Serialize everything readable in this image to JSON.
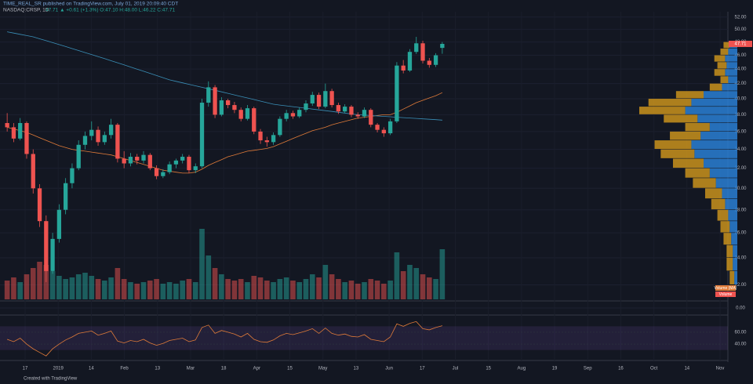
{
  "header": {
    "publisher": "TIME_REAL_SR published on TradingView.com, July 01, 2019 20:09:40 CDT",
    "symbol": "NASDAQ:CRSP, 1D",
    "quote": "47.71 ▲ +0.61 (+1.3%) O:47.10 H:48.00 L:46.22 C:47.71"
  },
  "footer": "Created with TradingView",
  "chart_data": {
    "type": "candlestick",
    "log_scale": true,
    "ylim": [
      21,
      52.5
    ],
    "yticks": [
      {
        "value": 22,
        "label": "22.00"
      },
      {
        "value": 24,
        "label": "24.00"
      },
      {
        "value": 26,
        "label": "26.00"
      },
      {
        "value": 28,
        "label": "28.00"
      },
      {
        "value": 30,
        "label": "30.00"
      },
      {
        "value": 32,
        "label": "32.00"
      },
      {
        "value": 34,
        "label": "34.00"
      },
      {
        "value": 36,
        "label": "36.00"
      },
      {
        "value": 38,
        "label": "38.00"
      },
      {
        "value": 40,
        "label": "40.00"
      },
      {
        "value": 42,
        "label": "42.00"
      },
      {
        "value": 44,
        "label": "44.00"
      },
      {
        "value": 46,
        "label": "46.00"
      },
      {
        "value": 48,
        "label": "48.00"
      },
      {
        "value": 50,
        "label": "50.00"
      },
      {
        "value": 52,
        "label": "52.00"
      }
    ],
    "xtick_labels": [
      "17",
      "2019",
      "14",
      "Feb",
      "13",
      "Mar",
      "18",
      "Apr",
      "15",
      "May",
      "13",
      "Jun",
      "17",
      "Jul",
      "15",
      "Aug",
      "19",
      "Sep",
      "16",
      "Oct",
      "14",
      "Nov"
    ],
    "up_color": "#26a69a",
    "down_color": "#ef5350",
    "last_price": 47.71,
    "ohlc": [
      [
        37.0,
        38.2,
        36.0,
        36.5
      ],
      [
        36.5,
        37.0,
        34.8,
        35.2
      ],
      [
        35.2,
        37.6,
        35.0,
        37.0
      ],
      [
        37.0,
        37.2,
        33.0,
        33.5
      ],
      [
        33.5,
        34.0,
        29.5,
        30.0
      ],
      [
        30.0,
        30.4,
        26.5,
        27.0
      ],
      [
        27.0,
        27.5,
        22.2,
        23.0
      ],
      [
        23.0,
        26.0,
        22.8,
        25.5
      ],
      [
        25.5,
        28.5,
        25.2,
        28.0
      ],
      [
        28.0,
        31.0,
        27.6,
        30.5
      ],
      [
        30.5,
        32.5,
        30.0,
        32.0
      ],
      [
        32.0,
        35.0,
        31.8,
        34.5
      ],
      [
        34.5,
        36.0,
        34.0,
        35.5
      ],
      [
        35.5,
        37.2,
        35.0,
        36.2
      ],
      [
        36.2,
        36.6,
        34.4,
        34.8
      ],
      [
        34.8,
        36.0,
        34.5,
        35.6
      ],
      [
        35.6,
        37.5,
        35.2,
        36.8
      ],
      [
        36.8,
        37.0,
        32.6,
        33.0
      ],
      [
        33.0,
        33.8,
        32.0,
        32.5
      ],
      [
        32.5,
        33.6,
        32.2,
        33.2
      ],
      [
        33.2,
        33.5,
        32.4,
        32.8
      ],
      [
        32.8,
        33.8,
        32.5,
        33.4
      ],
      [
        33.4,
        33.6,
        31.8,
        32.0
      ],
      [
        32.0,
        32.3,
        30.9,
        31.2
      ],
      [
        31.2,
        31.9,
        31.0,
        31.6
      ],
      [
        31.6,
        32.7,
        31.4,
        32.4
      ],
      [
        32.4,
        33.0,
        32.0,
        32.8
      ],
      [
        32.8,
        33.5,
        32.5,
        33.2
      ],
      [
        33.2,
        33.4,
        31.5,
        31.8
      ],
      [
        31.8,
        32.5,
        31.5,
        32.2
      ],
      [
        32.2,
        40.0,
        32.0,
        39.5
      ],
      [
        39.5,
        42.3,
        39.0,
        41.5
      ],
      [
        41.5,
        41.8,
        37.6,
        38.0
      ],
      [
        38.0,
        40.2,
        37.8,
        39.8
      ],
      [
        39.8,
        40.0,
        38.8,
        39.2
      ],
      [
        39.2,
        39.6,
        38.2,
        38.6
      ],
      [
        38.6,
        38.9,
        37.2,
        37.5
      ],
      [
        37.5,
        39.2,
        37.3,
        38.8
      ],
      [
        38.8,
        39.0,
        35.7,
        36.0
      ],
      [
        36.0,
        36.3,
        34.6,
        35.0
      ],
      [
        35.0,
        35.4,
        34.3,
        34.8
      ],
      [
        34.8,
        35.9,
        34.5,
        35.6
      ],
      [
        35.6,
        37.8,
        35.4,
        37.5
      ],
      [
        37.5,
        38.6,
        37.2,
        38.2
      ],
      [
        38.2,
        38.5,
        37.5,
        37.8
      ],
      [
        37.8,
        38.9,
        37.6,
        38.6
      ],
      [
        38.6,
        39.8,
        38.3,
        39.4
      ],
      [
        39.4,
        40.9,
        39.1,
        40.5
      ],
      [
        40.5,
        40.8,
        38.7,
        39.0
      ],
      [
        39.0,
        42.0,
        38.8,
        41.0
      ],
      [
        41.0,
        41.3,
        38.9,
        39.2
      ],
      [
        39.2,
        39.5,
        38.1,
        38.4
      ],
      [
        38.4,
        39.3,
        38.2,
        39.0
      ],
      [
        39.0,
        39.2,
        37.7,
        38.0
      ],
      [
        38.0,
        38.3,
        37.5,
        37.8
      ],
      [
        37.8,
        38.9,
        37.6,
        38.6
      ],
      [
        38.6,
        38.8,
        36.5,
        36.8
      ],
      [
        36.8,
        37.0,
        35.9,
        36.2
      ],
      [
        36.2,
        36.5,
        35.4,
        35.8
      ],
      [
        35.8,
        37.5,
        35.6,
        37.2
      ],
      [
        37.2,
        45.0,
        37.0,
        44.5
      ],
      [
        44.5,
        45.3,
        43.4,
        43.8
      ],
      [
        43.8,
        46.9,
        43.6,
        46.5
      ],
      [
        46.5,
        48.8,
        46.2,
        47.8
      ],
      [
        47.8,
        48.2,
        44.8,
        45.2
      ],
      [
        45.2,
        45.6,
        44.2,
        44.6
      ],
      [
        44.6,
        46.3,
        44.3,
        46.0
      ],
      [
        47.1,
        48.0,
        46.22,
        47.71
      ]
    ],
    "moving_averages": [
      {
        "color": "#e07b39",
        "values": [
          36.5,
          36.3,
          36.1,
          35.9,
          35.6,
          35.3,
          35.0,
          34.7,
          34.4,
          34.2,
          34.0,
          33.9,
          33.8,
          33.7,
          33.6,
          33.5,
          33.4,
          33.2,
          33.0,
          32.8,
          32.6,
          32.4,
          32.2,
          32.0,
          31.8,
          31.7,
          31.6,
          31.5,
          31.5,
          31.6,
          31.9,
          32.3,
          32.6,
          32.9,
          33.2,
          33.4,
          33.6,
          33.8,
          33.9,
          34.0,
          34.1,
          34.3,
          34.6,
          34.9,
          35.2,
          35.5,
          35.8,
          36.1,
          36.3,
          36.5,
          36.8,
          37.0,
          37.2,
          37.4,
          37.6,
          37.7,
          37.8,
          37.9,
          38.0,
          38.0,
          38.3,
          38.7,
          39.1,
          39.5,
          39.8,
          40.1,
          40.4,
          40.8
        ]
      },
      {
        "color": "#3a8fb7",
        "values": [
          49.6,
          49.4,
          49.2,
          49.0,
          48.8,
          48.5,
          48.2,
          47.9,
          47.6,
          47.3,
          47.0,
          46.7,
          46.4,
          46.1,
          45.8,
          45.5,
          45.2,
          44.9,
          44.6,
          44.3,
          44.0,
          43.7,
          43.4,
          43.1,
          42.8,
          42.5,
          42.3,
          42.1,
          41.9,
          41.7,
          41.5,
          41.3,
          41.1,
          40.9,
          40.7,
          40.5,
          40.3,
          40.1,
          39.9,
          39.7,
          39.5,
          39.3,
          39.2,
          39.1,
          39.0,
          38.9,
          38.8,
          38.7,
          38.6,
          38.5,
          38.4,
          38.3,
          38.2,
          38.1,
          38.0,
          37.95,
          37.9,
          37.85,
          37.8,
          37.75,
          37.7,
          37.65,
          37.6,
          37.55,
          37.5,
          37.45,
          37.4,
          37.35
        ]
      }
    ],
    "volume": {
      "labels": [
        "Volume (MA)",
        "Volume"
      ],
      "values": [
        1.2,
        1.4,
        1.1,
        1.6,
        2.0,
        2.4,
        2.2,
        1.8,
        1.5,
        1.3,
        1.4,
        1.6,
        1.7,
        1.5,
        1.3,
        1.2,
        1.4,
        2.0,
        1.3,
        1.1,
        1.0,
        1.1,
        1.2,
        1.3,
        1.0,
        1.1,
        1.0,
        1.2,
        1.3,
        1.1,
        4.5,
        2.8,
        2.0,
        1.6,
        1.3,
        1.2,
        1.3,
        1.1,
        1.5,
        1.4,
        1.2,
        1.1,
        1.3,
        1.4,
        1.2,
        1.1,
        1.3,
        1.6,
        1.4,
        2.2,
        1.6,
        1.3,
        1.1,
        1.2,
        1.0,
        1.1,
        1.3,
        1.2,
        1.0,
        1.2,
        3.0,
        1.8,
        2.2,
        2.0,
        1.6,
        1.4,
        1.3,
        3.2
      ]
    },
    "volume_profile": {
      "up_color": "#2a7fd4",
      "down_color": "#c9921c",
      "bins": [
        22,
        23,
        24,
        25,
        26,
        27,
        28,
        29,
        30,
        31,
        32,
        33,
        34,
        35,
        36,
        37,
        38,
        39,
        40,
        41,
        42,
        43,
        44,
        45,
        46,
        47,
        48
      ],
      "up": [
        2,
        3,
        3,
        4,
        5,
        6,
        8,
        10,
        14,
        18,
        22,
        28,
        30,
        24,
        18,
        26,
        34,
        30,
        22,
        10,
        6,
        8,
        7,
        8,
        6,
        5
      ],
      "down": [
        3,
        4,
        4,
        5,
        6,
        7,
        9,
        11,
        15,
        16,
        20,
        22,
        24,
        20,
        16,
        22,
        30,
        28,
        18,
        8,
        5,
        7,
        6,
        7,
        5,
        4
      ]
    },
    "zero_tick": {
      "value": 0,
      "label": "0.00"
    },
    "rsi": {
      "color": "#e07b39",
      "ylim": [
        15,
        85
      ],
      "band": [
        30,
        70
      ],
      "yticks": [
        {
          "value": 40,
          "label": "40.00"
        },
        {
          "value": 60,
          "label": "60.00"
        }
      ],
      "values": [
        48,
        44,
        50,
        40,
        32,
        26,
        20,
        32,
        40,
        47,
        52,
        58,
        60,
        62,
        55,
        58,
        62,
        45,
        42,
        46,
        44,
        48,
        42,
        38,
        41,
        46,
        48,
        50,
        44,
        47,
        68,
        72,
        58,
        63,
        60,
        57,
        52,
        58,
        48,
        44,
        43,
        47,
        54,
        58,
        56,
        59,
        62,
        66,
        58,
        67,
        58,
        55,
        57,
        53,
        52,
        56,
        48,
        46,
        44,
        52,
        74,
        70,
        75,
        78,
        66,
        64,
        68,
        71
      ]
    }
  }
}
